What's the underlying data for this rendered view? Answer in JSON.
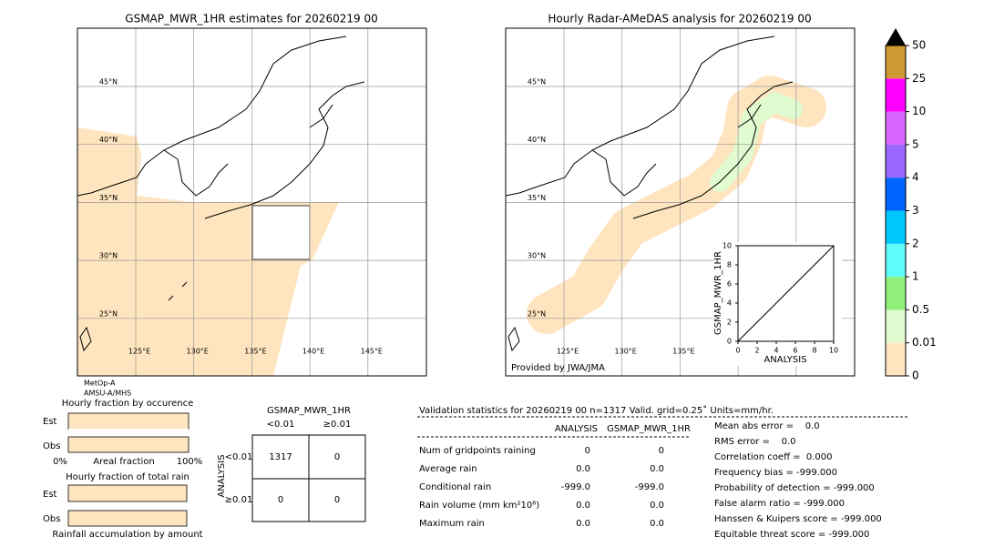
{
  "left_map": {
    "title": "GSMAP_MWR_1HR estimates for 20260219 00",
    "lat_labels": [
      "45°N",
      "40°N",
      "35°N",
      "30°N",
      "25°N"
    ],
    "lon_labels": [
      "125°E",
      "130°E",
      "135°E",
      "140°E",
      "145°E"
    ],
    "sensors": [
      "MetOp-A",
      "AMSU-A/MHS"
    ]
  },
  "right_map": {
    "title": "Hourly Radar-AMeDAS analysis for 20260219 00",
    "lat_labels": [
      "45°N",
      "40°N",
      "35°N",
      "30°N",
      "25°N"
    ],
    "lon_labels": [
      "125°E",
      "130°E",
      "135°E"
    ],
    "credit": "Provided by JWA/JMA"
  },
  "scatter": {
    "xlabel": "ANALYSIS",
    "ylabel": "GSMAP_MWR_1HR",
    "xlim": [
      0,
      10
    ],
    "ylim": [
      0,
      10
    ],
    "xticks": [
      0,
      2,
      4,
      6,
      8,
      10
    ],
    "yticks": [
      0,
      2,
      4,
      6,
      8,
      10
    ]
  },
  "colorbar": {
    "levels": [
      0,
      0.01,
      0.5,
      1,
      2,
      3,
      4,
      5,
      10,
      25,
      50
    ],
    "colors": [
      "#fee5bf",
      "#e0fbd0",
      "#90f07a",
      "#5ffcfc",
      "#00c8ff",
      "#0064ff",
      "#9966ff",
      "#d966ff",
      "#ff00ff",
      "#cc9933"
    ]
  },
  "fraction_occurrence": {
    "title": "Hourly fraction by occurence",
    "rows": [
      "Est",
      "Obs"
    ],
    "axis_labels": [
      "0%",
      "Areal fraction",
      "100%"
    ]
  },
  "fraction_rain": {
    "title": "Hourly fraction of total rain",
    "rows": [
      "Est",
      "Obs"
    ],
    "caption": "Rainfall accumulation by amount"
  },
  "contingency": {
    "title": "GSMAP_MWR_1HR",
    "col_headers": [
      "<0.01",
      "≥0.01"
    ],
    "row_title": "ANALYSIS",
    "row_headers": [
      "<0.01",
      "≥0.01"
    ],
    "cells": [
      [
        1317,
        0
      ],
      [
        0,
        0
      ]
    ]
  },
  "validation": {
    "header": "Validation statistics for 20260219 00  n=1317 Valid. grid=0.25˚ Units=mm/hr.",
    "columns": [
      "ANALYSIS",
      "GSMAP_MWR_1HR"
    ],
    "rows": [
      {
        "label": "Num of gridpoints raining",
        "analysis": "0",
        "estimate": "0"
      },
      {
        "label": "Average rain",
        "analysis": "0.0",
        "estimate": "0.0"
      },
      {
        "label": "Conditional rain",
        "analysis": "-999.0",
        "estimate": "-999.0"
      },
      {
        "label": "Rain volume (mm km²10⁶)",
        "analysis": "0.0",
        "estimate": "0.0"
      },
      {
        "label": "Maximum rain",
        "analysis": "0.0",
        "estimate": "0.0"
      }
    ]
  },
  "scores": [
    "Mean abs error =    0.0",
    "RMS error =    0.0",
    "Correlation coeff =  0.000",
    "Frequency bias = -999.000",
    "Probability of detection = -999.000",
    "False alarm ratio = -999.000",
    "Hanssen & Kuipers score = -999.000",
    "Equitable threat score = -999.000"
  ]
}
